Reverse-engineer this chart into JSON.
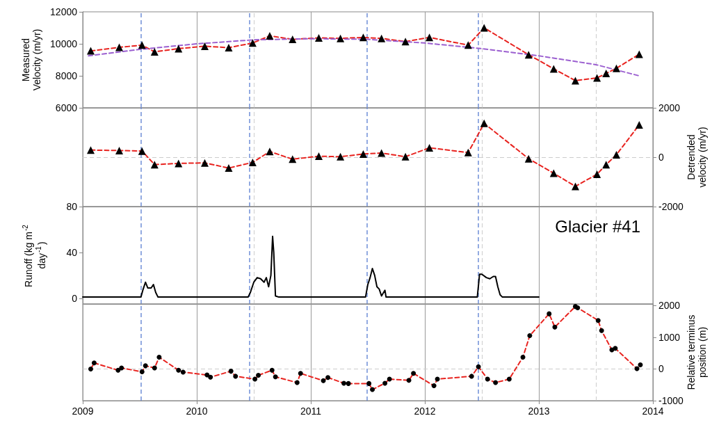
{
  "chart_data": [
    {
      "type": "line",
      "ylabel": "Measured Velocity (m/yr)",
      "xlim": [
        2009,
        2014
      ],
      "xticks": [
        2009,
        2010,
        2011,
        2012,
        2013,
        2014
      ],
      "ylim": [
        6000,
        12000
      ],
      "yticks": [
        6000,
        8000,
        10000,
        12000
      ],
      "tick_labels": "y",
      "grid": "x",
      "series": [
        {
          "color": "#e8231f",
          "marker": "triangle",
          "line_style": "dashed",
          "x": [
            2009.07,
            2009.32,
            2009.52,
            2009.63,
            2009.84,
            2010.07,
            2010.28,
            2010.49,
            2010.64,
            2010.84,
            2011.07,
            2011.26,
            2011.46,
            2011.62,
            2011.83,
            2012.04,
            2012.38,
            2012.52,
            2012.91,
            2013.13,
            2013.32,
            2013.51,
            2013.59,
            2013.68,
            2013.88
          ],
          "values": [
            9560,
            9780,
            9920,
            9500,
            9700,
            9850,
            9760,
            10050,
            10500,
            10280,
            10370,
            10340,
            10400,
            10340,
            10140,
            10400,
            9920,
            11000,
            9320,
            8440,
            7700,
            7870,
            8150,
            8470,
            9350
          ]
        },
        {
          "color": "#9b5fd0",
          "marker": "none",
          "line_style": "dashed",
          "x": [
            2009.05,
            2009.5,
            2010,
            2010.5,
            2011,
            2011.5,
            2012,
            2012.5,
            2013,
            2013.5,
            2013.88
          ],
          "values": [
            9250,
            9650,
            10000,
            10250,
            10320,
            10280,
            10050,
            9700,
            9250,
            8700,
            8000
          ]
        }
      ],
      "ref_lines": [
        {
          "axis": "x",
          "value": 2009.51,
          "color": "#6f8fd8",
          "line_style": "dashed"
        },
        {
          "axis": "x",
          "value": 2010.46,
          "color": "#6f8fd8",
          "line_style": "dashed"
        },
        {
          "axis": "x",
          "value": 2011.49,
          "color": "#6f8fd8",
          "line_style": "dashed"
        },
        {
          "axis": "x",
          "value": 2012.47,
          "color": "#6f8fd8",
          "line_style": "dashed"
        },
        {
          "axis": "x",
          "value": 2010.5,
          "color": "#cccccc",
          "line_style": "dashed"
        },
        {
          "axis": "x",
          "value": 2012.5,
          "color": "#cccccc",
          "line_style": "dashed"
        },
        {
          "axis": "x",
          "value": 2013.5,
          "color": "#cccccc",
          "line_style": "dashed"
        }
      ]
    },
    {
      "type": "line",
      "y2label": "Detrended velocity (m/yr)",
      "xlim": [
        2009,
        2014
      ],
      "xticks": [
        2009,
        2010,
        2011,
        2012,
        2013,
        2014
      ],
      "y2lim": [
        -2000,
        2000
      ],
      "y2ticks": [
        -2000,
        0,
        2000
      ],
      "tick_labels": "y",
      "grid": "x",
      "series": [
        {
          "color": "#e8231f",
          "marker": "triangle",
          "line_style": "dashed",
          "axis": "y2",
          "x": [
            2009.07,
            2009.32,
            2009.52,
            2009.63,
            2009.84,
            2010.07,
            2010.28,
            2010.49,
            2010.64,
            2010.84,
            2011.07,
            2011.26,
            2011.46,
            2011.62,
            2011.83,
            2012.04,
            2012.38,
            2012.52,
            2012.91,
            2013.13,
            2013.32,
            2013.51,
            2013.59,
            2013.68,
            2013.88
          ],
          "values": [
            290,
            270,
            250,
            -300,
            -250,
            -230,
            -440,
            -210,
            230,
            -80,
            40,
            20,
            130,
            170,
            20,
            380,
            190,
            1370,
            -60,
            -650,
            -1180,
            -690,
            -300,
            100,
            1310
          ]
        }
      ],
      "ref_lines": [
        {
          "axis": "y2",
          "value": 0,
          "color": "#cccccc",
          "line_style": "dashed"
        },
        {
          "axis": "x",
          "value": 2009.51,
          "color": "#6f8fd8",
          "line_style": "dashed"
        },
        {
          "axis": "x",
          "value": 2010.46,
          "color": "#6f8fd8",
          "line_style": "dashed"
        },
        {
          "axis": "x",
          "value": 2011.49,
          "color": "#6f8fd8",
          "line_style": "dashed"
        },
        {
          "axis": "x",
          "value": 2012.47,
          "color": "#6f8fd8",
          "line_style": "dashed"
        },
        {
          "axis": "x",
          "value": 2010.5,
          "color": "#cccccc",
          "line_style": "dashed"
        },
        {
          "axis": "x",
          "value": 2012.5,
          "color": "#cccccc",
          "line_style": "dashed"
        },
        {
          "axis": "x",
          "value": 2013.5,
          "color": "#cccccc",
          "line_style": "dashed"
        }
      ]
    },
    {
      "type": "line",
      "ylabel": "Runoff (kg m$^{-2}$ day$^{-1}$)",
      "annotations": [
        "Glacier #41"
      ],
      "xlim": [
        2009,
        2014
      ],
      "xticks": [
        2009,
        2010,
        2011,
        2012,
        2013,
        2014
      ],
      "ylim": [
        -5,
        80
      ],
      "yticks": [
        0,
        40,
        80
      ],
      "tick_labels": "y",
      "grid": "x",
      "series": [
        {
          "color": "#000000",
          "marker": "none",
          "line_style": "solid",
          "x": [
            2009.0,
            2009.51,
            2009.53,
            2009.55,
            2009.57,
            2009.6,
            2009.62,
            2009.64,
            2009.66,
            2009.68,
            2010.0,
            2010.45,
            2010.47,
            2010.5,
            2010.53,
            2010.56,
            2010.59,
            2010.61,
            2010.63,
            2010.65,
            2010.665,
            2010.675,
            2010.69,
            2010.72,
            2011.0,
            2011.48,
            2011.5,
            2011.52,
            2011.54,
            2011.56,
            2011.58,
            2011.6,
            2011.62,
            2011.65,
            2011.66,
            2011.68,
            2011.7,
            2012.0,
            2012.46,
            2012.48,
            2012.5,
            2012.54,
            2012.57,
            2012.6,
            2012.62,
            2012.64,
            2012.66,
            2012.68,
            2013.0
          ],
          "values": [
            1,
            1,
            8,
            14,
            9,
            9,
            12,
            5,
            1,
            1,
            1,
            1,
            5,
            14,
            18,
            17,
            14,
            18,
            10,
            20,
            54,
            40,
            2,
            1,
            1,
            1,
            12,
            18,
            26,
            20,
            10,
            8,
            2,
            7,
            1,
            1,
            1,
            1,
            1,
            21,
            21,
            18,
            17,
            19,
            19,
            10,
            3,
            1,
            1
          ]
        }
      ],
      "ref_lines": [
        {
          "axis": "x",
          "value": 2009.51,
          "color": "#6f8fd8",
          "line_style": "dashed"
        },
        {
          "axis": "x",
          "value": 2010.46,
          "color": "#6f8fd8",
          "line_style": "dashed"
        },
        {
          "axis": "x",
          "value": 2011.49,
          "color": "#6f8fd8",
          "line_style": "dashed"
        },
        {
          "axis": "x",
          "value": 2012.47,
          "color": "#6f8fd8",
          "line_style": "dashed"
        },
        {
          "axis": "x",
          "value": 2010.5,
          "color": "#cccccc",
          "line_style": "dashed"
        },
        {
          "axis": "x",
          "value": 2012.5,
          "color": "#cccccc",
          "line_style": "dashed"
        },
        {
          "axis": "x",
          "value": 2013.5,
          "color": "#cccccc",
          "line_style": "dashed"
        }
      ]
    },
    {
      "type": "line",
      "y2label": "Relative terminus position (m)",
      "xlim": [
        2009,
        2014
      ],
      "xticks": [
        2009,
        2010,
        2011,
        2012,
        2013,
        2014
      ],
      "y2lim": [
        -1000,
        2050
      ],
      "y2ticks": [
        -1000,
        0,
        1000,
        2000
      ],
      "grid": "x",
      "series": [
        {
          "color": "#e8231f",
          "marker": "circle",
          "line_style": "dashed",
          "axis": "y2",
          "x": [
            2009.07,
            2009.1,
            2009.31,
            2009.34,
            2009.52,
            2009.55,
            2009.63,
            2009.67,
            2009.84,
            2009.88,
            2010.09,
            2010.12,
            2010.3,
            2010.34,
            2010.51,
            2010.54,
            2010.66,
            2010.69,
            2010.88,
            2010.91,
            2011.11,
            2011.15,
            2011.29,
            2011.33,
            2011.51,
            2011.54,
            2011.65,
            2011.69,
            2011.86,
            2011.9,
            2012.08,
            2012.11,
            2012.41,
            2012.47,
            2012.55,
            2012.62,
            2012.74,
            2012.86,
            2012.92,
            2013.09,
            2013.14,
            2013.32,
            2013.34,
            2013.52,
            2013.55,
            2013.64,
            2013.67,
            2013.86,
            2013.89
          ],
          "values": [
            0,
            190,
            -40,
            30,
            -90,
            100,
            30,
            370,
            -40,
            -100,
            -190,
            -260,
            -70,
            -230,
            -320,
            -200,
            -40,
            -250,
            -430,
            -140,
            -370,
            -270,
            -450,
            -460,
            -460,
            -650,
            -450,
            -320,
            -360,
            -140,
            -530,
            -320,
            -230,
            70,
            -320,
            -430,
            -320,
            370,
            1050,
            1740,
            1320,
            1970,
            1930,
            1530,
            1210,
            600,
            650,
            10,
            130
          ]
        }
      ],
      "ref_lines": [
        {
          "axis": "y2",
          "value": 0,
          "color": "#cccccc",
          "line_style": "dashed"
        },
        {
          "axis": "x",
          "value": 2009.51,
          "color": "#6f8fd8",
          "line_style": "dashed"
        },
        {
          "axis": "x",
          "value": 2010.46,
          "color": "#6f8fd8",
          "line_style": "dashed"
        },
        {
          "axis": "x",
          "value": 2011.49,
          "color": "#6f8fd8",
          "line_style": "dashed"
        },
        {
          "axis": "x",
          "value": 2012.47,
          "color": "#6f8fd8",
          "line_style": "dashed"
        },
        {
          "axis": "x",
          "value": 2010.5,
          "color": "#cccccc",
          "line_style": "dashed"
        },
        {
          "axis": "x",
          "value": 2012.5,
          "color": "#cccccc",
          "line_style": "dashed"
        },
        {
          "axis": "x",
          "value": 2013.5,
          "color": "#cccccc",
          "line_style": "dashed"
        }
      ]
    }
  ]
}
